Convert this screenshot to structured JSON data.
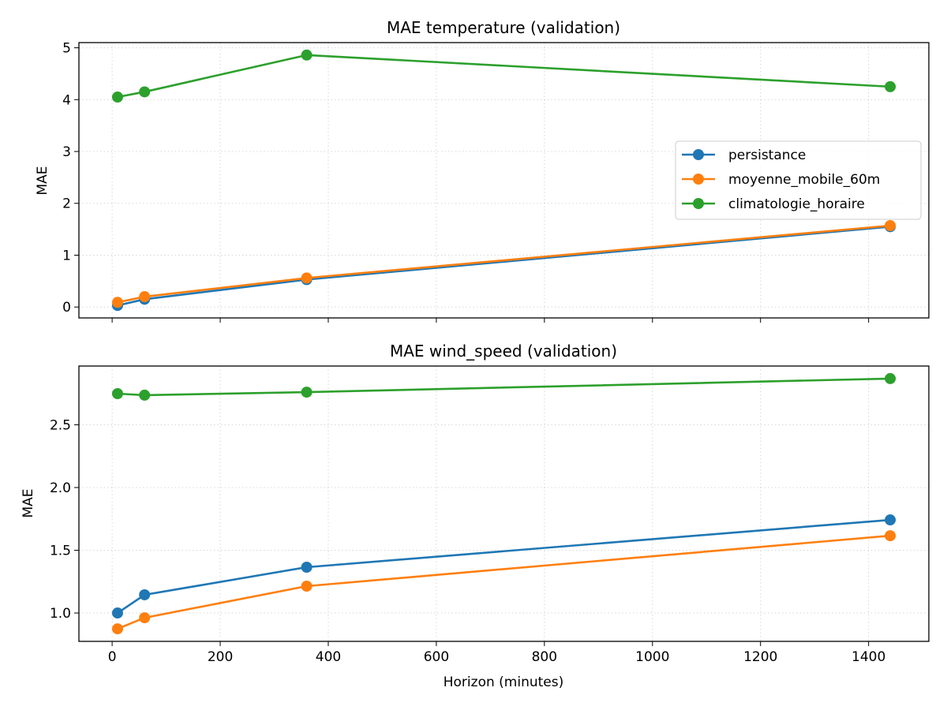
{
  "chart_data": [
    {
      "type": "line",
      "title": "MAE temperature (validation)",
      "xlabel": "",
      "ylabel": "MAE",
      "x": [
        10,
        60,
        360,
        1440
      ],
      "xlim": [
        -61.5,
        1511.5
      ],
      "ylim": [
        -0.21,
        5.1
      ],
      "xticks": [
        0,
        200,
        400,
        600,
        800,
        1000,
        1200,
        1400
      ],
      "xtick_labels_visible": false,
      "yticks": [
        0,
        1,
        2,
        3,
        4,
        5
      ],
      "ytick_labels": [
        "0",
        "1",
        "2",
        "3",
        "4",
        "5"
      ],
      "grid": true,
      "legend": "center-right",
      "series": [
        {
          "name": "persistance",
          "color": "#1f77b4",
          "values": [
            0.03,
            0.15,
            0.53,
            1.55
          ]
        },
        {
          "name": "moyenne_mobile_60m",
          "color": "#ff7f0e",
          "values": [
            0.09,
            0.2,
            0.56,
            1.57
          ]
        },
        {
          "name": "climatologie_horaire",
          "color": "#2ca02c",
          "values": [
            4.05,
            4.15,
            4.86,
            4.25
          ]
        }
      ]
    },
    {
      "type": "line",
      "title": "MAE wind_speed (validation)",
      "xlabel": "Horizon (minutes)",
      "ylabel": "MAE",
      "x": [
        10,
        60,
        360,
        1440
      ],
      "xlim": [
        -61.5,
        1511.5
      ],
      "ylim": [
        0.774,
        2.968
      ],
      "xticks": [
        0,
        200,
        400,
        600,
        800,
        1000,
        1200,
        1400
      ],
      "xtick_labels": [
        "0",
        "200",
        "400",
        "600",
        "800",
        "1000",
        "1200",
        "1400"
      ],
      "xtick_labels_visible": true,
      "yticks": [
        1.0,
        1.5,
        2.0,
        2.5
      ],
      "ytick_labels": [
        "1.0",
        "1.5",
        "2.0",
        "2.5"
      ],
      "grid": true,
      "series": [
        {
          "color": "#1f77b4",
          "values": [
            1.0,
            1.145,
            1.365,
            1.742
          ]
        },
        {
          "color": "#ff7f0e",
          "values": [
            0.874,
            0.962,
            1.214,
            1.616
          ]
        },
        {
          "color": "#2ca02c",
          "values": [
            2.748,
            2.736,
            2.76,
            2.868
          ]
        }
      ]
    }
  ]
}
